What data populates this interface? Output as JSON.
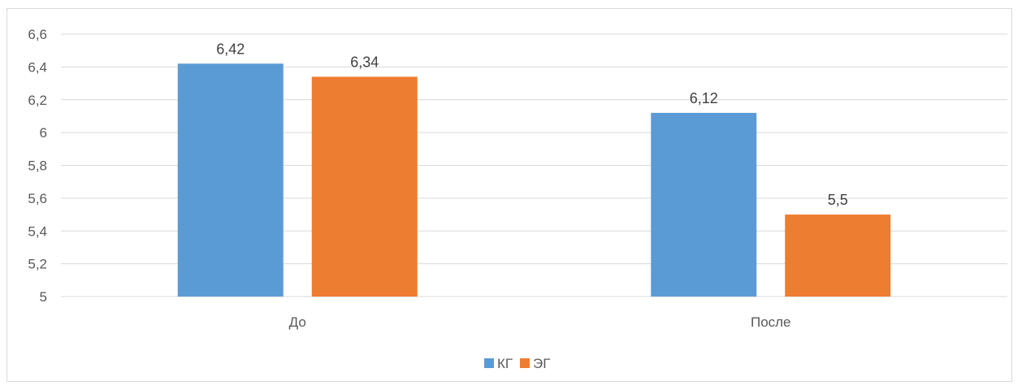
{
  "chart_data": {
    "type": "bar",
    "categories": [
      "До",
      "После"
    ],
    "series": [
      {
        "name": "КГ",
        "values": [
          6.42,
          6.12
        ],
        "labels": [
          "6,42",
          "6,12"
        ],
        "color": "#5b9bd5"
      },
      {
        "name": "ЭГ",
        "values": [
          6.34,
          5.5
        ],
        "labels": [
          "6,34",
          "5,5"
        ],
        "color": "#ed7d31"
      }
    ],
    "ylim": [
      5,
      6.6
    ],
    "yticks": [
      5,
      5.2,
      5.4,
      5.6,
      5.8,
      6,
      6.2,
      6.4,
      6.6
    ],
    "ytick_labels": [
      "5",
      "5,2",
      "5,4",
      "5,6",
      "5,8",
      "6",
      "6,2",
      "6,4",
      "6,6"
    ],
    "grid": true,
    "legend_position": "bottom",
    "title": "",
    "xlabel": "",
    "ylabel": "",
    "gridline_color": "#d9d9d9"
  }
}
